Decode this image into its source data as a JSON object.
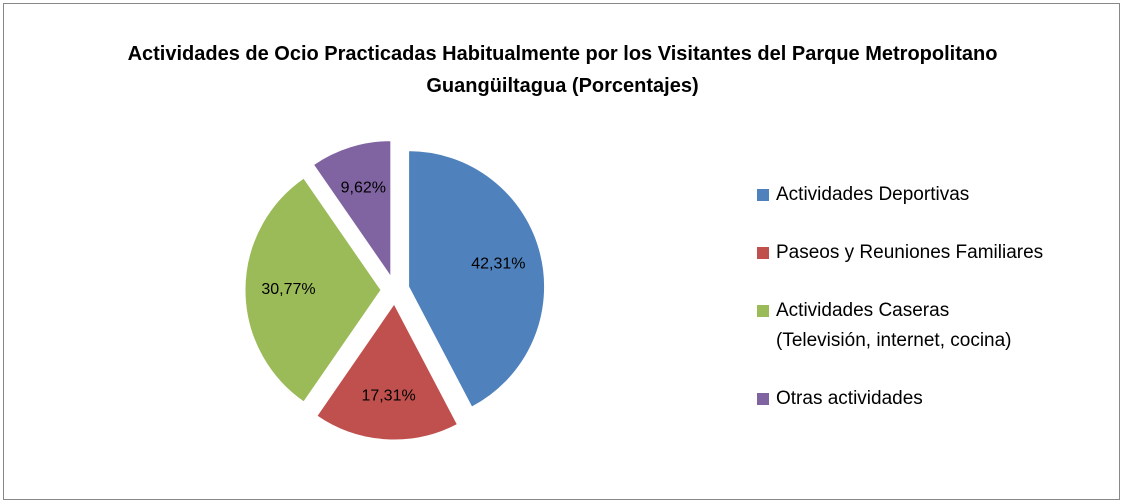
{
  "chart_data": {
    "type": "pie",
    "title": "Actividades de Ocio Practicadas Habitualmente por los Visitantes del Parque Metropolitano Guangüiltagua (Porcentajes)",
    "categories": [
      "Actividades Deportivas",
      "Paseos y Reuniones Familiares",
      "Actividades Caseras\n(Televisión, internet, cocina)",
      "Otras actividades"
    ],
    "values": [
      42.31,
      17.31,
      30.77,
      9.62
    ],
    "value_labels": [
      "42,31%",
      "17,31%",
      "30,77%",
      "9,62%"
    ],
    "colors": [
      "#4f81bd",
      "#c0504d",
      "#9bbb59",
      "#8064a2"
    ],
    "exploded": true,
    "legend": "right"
  }
}
